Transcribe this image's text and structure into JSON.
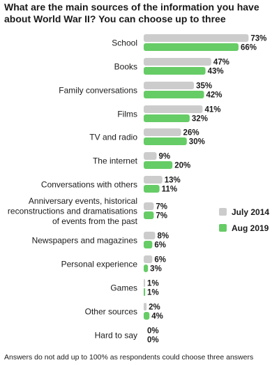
{
  "chart_data": {
    "type": "bar",
    "orientation": "horizontal",
    "title": "What are the main sources of the information you have about World War II? You can choose up to three",
    "footnote": "Answers do not add up to 100% as respondents could choose three answers",
    "categories": [
      [
        "School"
      ],
      [
        "Books"
      ],
      [
        "Family conversations"
      ],
      [
        "Films"
      ],
      [
        "TV and radio"
      ],
      [
        "The internet"
      ],
      [
        "Conversations with others"
      ],
      [
        "Anniversary events, historical",
        "reconstructions and dramatisations",
        "of events from the past"
      ],
      [
        "Newspapers and magazines"
      ],
      [
        "Personal experience"
      ],
      [
        "Games"
      ],
      [
        "Other sources"
      ],
      [
        "Hard to say"
      ]
    ],
    "series": [
      {
        "name": "July  2014",
        "color": "#cccccc",
        "values": [
          73,
          47,
          35,
          41,
          26,
          9,
          13,
          7,
          8,
          6,
          1,
          2,
          0
        ]
      },
      {
        "name": "Aug  2019",
        "color": "#66cc66",
        "values": [
          66,
          43,
          42,
          32,
          30,
          20,
          11,
          7,
          6,
          3,
          1,
          4,
          0
        ]
      }
    ],
    "value_suffix": "%",
    "xlim": [
      0,
      100
    ],
    "grid": false,
    "legend_position": "right"
  }
}
